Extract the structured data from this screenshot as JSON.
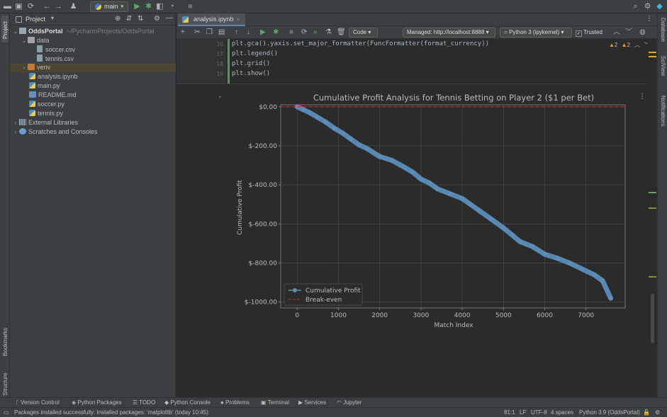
{
  "toolbar": {
    "branch": "main"
  },
  "left_strip": {
    "project": "Project",
    "bookmarks": "Bookmarks",
    "structure": "Structure"
  },
  "project_panel": {
    "title": "Project",
    "tree": [
      {
        "label": "OddsPortal",
        "path": "~/PycharmProjects/OddsPortal",
        "type": "folder",
        "expanded": true
      },
      {
        "label": "data",
        "type": "folder",
        "expanded": true
      },
      {
        "label": "soccer.csv",
        "type": "csv"
      },
      {
        "label": "tennis.csv",
        "type": "csv"
      },
      {
        "label": "venv",
        "type": "folder-venv",
        "selected": true
      },
      {
        "label": "analysis.ipynb",
        "type": "py"
      },
      {
        "label": "main.py",
        "type": "py"
      },
      {
        "label": "README.md",
        "type": "md"
      },
      {
        "label": "soccer.py",
        "type": "py"
      },
      {
        "label": "tennis.py",
        "type": "py"
      },
      {
        "label": "External Libraries",
        "type": "libs"
      },
      {
        "label": "Scratches and Consoles",
        "type": "scratch"
      }
    ]
  },
  "editor": {
    "tab": "analysis.ipynb",
    "cell_type": "Code",
    "server": "Managed: http://localhost:8888",
    "kernel": "Python 3 (ipykernel)",
    "trusted": "Trusted",
    "warnings_a": "2",
    "warnings_b": "2",
    "code_lines": [
      {
        "n": "16",
        "text": "plt.gca().yaxis.set_major_formatter(FuncFormatter(format_currency))"
      },
      {
        "n": "17",
        "text": "plt.legend()"
      },
      {
        "n": "18",
        "text": "plt.grid()"
      },
      {
        "n": "19",
        "text": "plt.show()"
      }
    ]
  },
  "right_strip": {
    "database": "Database",
    "sciview": "SciView",
    "notifications": "Notifications"
  },
  "chart_data": {
    "type": "line",
    "title": "Cumulative Profit Analysis for Tennis Betting on Player 2 ($1 per Bet)",
    "xlabel": "Match Index",
    "ylabel": "Cumulative Profit",
    "xlim": [
      -400,
      7950
    ],
    "ylim": [
      -1030,
      10
    ],
    "xticks": [
      0,
      1000,
      2000,
      3000,
      4000,
      5000,
      6000,
      7000
    ],
    "xtick_labels": [
      "0",
      "1000",
      "2000",
      "3000",
      "4000",
      "5000",
      "6000",
      "7000"
    ],
    "yticks": [
      0,
      -200,
      -400,
      -600,
      -800,
      -1000
    ],
    "ytick_labels": [
      "$0.00",
      "$-200.00",
      "$-400.00",
      "$-600.00",
      "$-800.00",
      "$-1000.00"
    ],
    "grid": true,
    "legend_position": "lower-left",
    "series": [
      {
        "name": "Cumulative Profit",
        "color": "#5b8db8",
        "style": "line-marker",
        "x": [
          0,
          150,
          300,
          500,
          700,
          900,
          1100,
          1300,
          1500,
          1700,
          2000,
          2300,
          2600,
          2800,
          3000,
          3200,
          3400,
          3700,
          4000,
          4200,
          4400,
          4700,
          5000,
          5200,
          5400,
          5700,
          6000,
          6300,
          6600,
          6900,
          7200,
          7400,
          7600
        ],
        "y": [
          0,
          -15,
          -30,
          -55,
          -80,
          -110,
          -135,
          -165,
          -195,
          -215,
          -255,
          -275,
          -310,
          -335,
          -370,
          -390,
          -420,
          -445,
          -470,
          -500,
          -530,
          -575,
          -620,
          -655,
          -690,
          -715,
          -755,
          -775,
          -800,
          -830,
          -860,
          -890,
          -980
        ]
      },
      {
        "name": "Break-even",
        "color": "#d62728",
        "style": "dashed",
        "x": [
          -400,
          7950
        ],
        "y": [
          0,
          0
        ]
      }
    ]
  },
  "bottom_tools": {
    "vcs": "Version Control",
    "packages": "Python Packages",
    "todo": "TODO",
    "console": "Python Console",
    "problems": "Problems",
    "terminal": "Terminal",
    "services": "Services",
    "jupyter": "Jupyter"
  },
  "status": {
    "message": "Packages installed successfully: Installed packages: 'matplotlib' (today 10:45)",
    "position": "81:1",
    "line_sep": "LF",
    "encoding": "UTF-8",
    "indent": "4 spaces",
    "interpreter": "Python 3.9 (OddsPortal)"
  }
}
